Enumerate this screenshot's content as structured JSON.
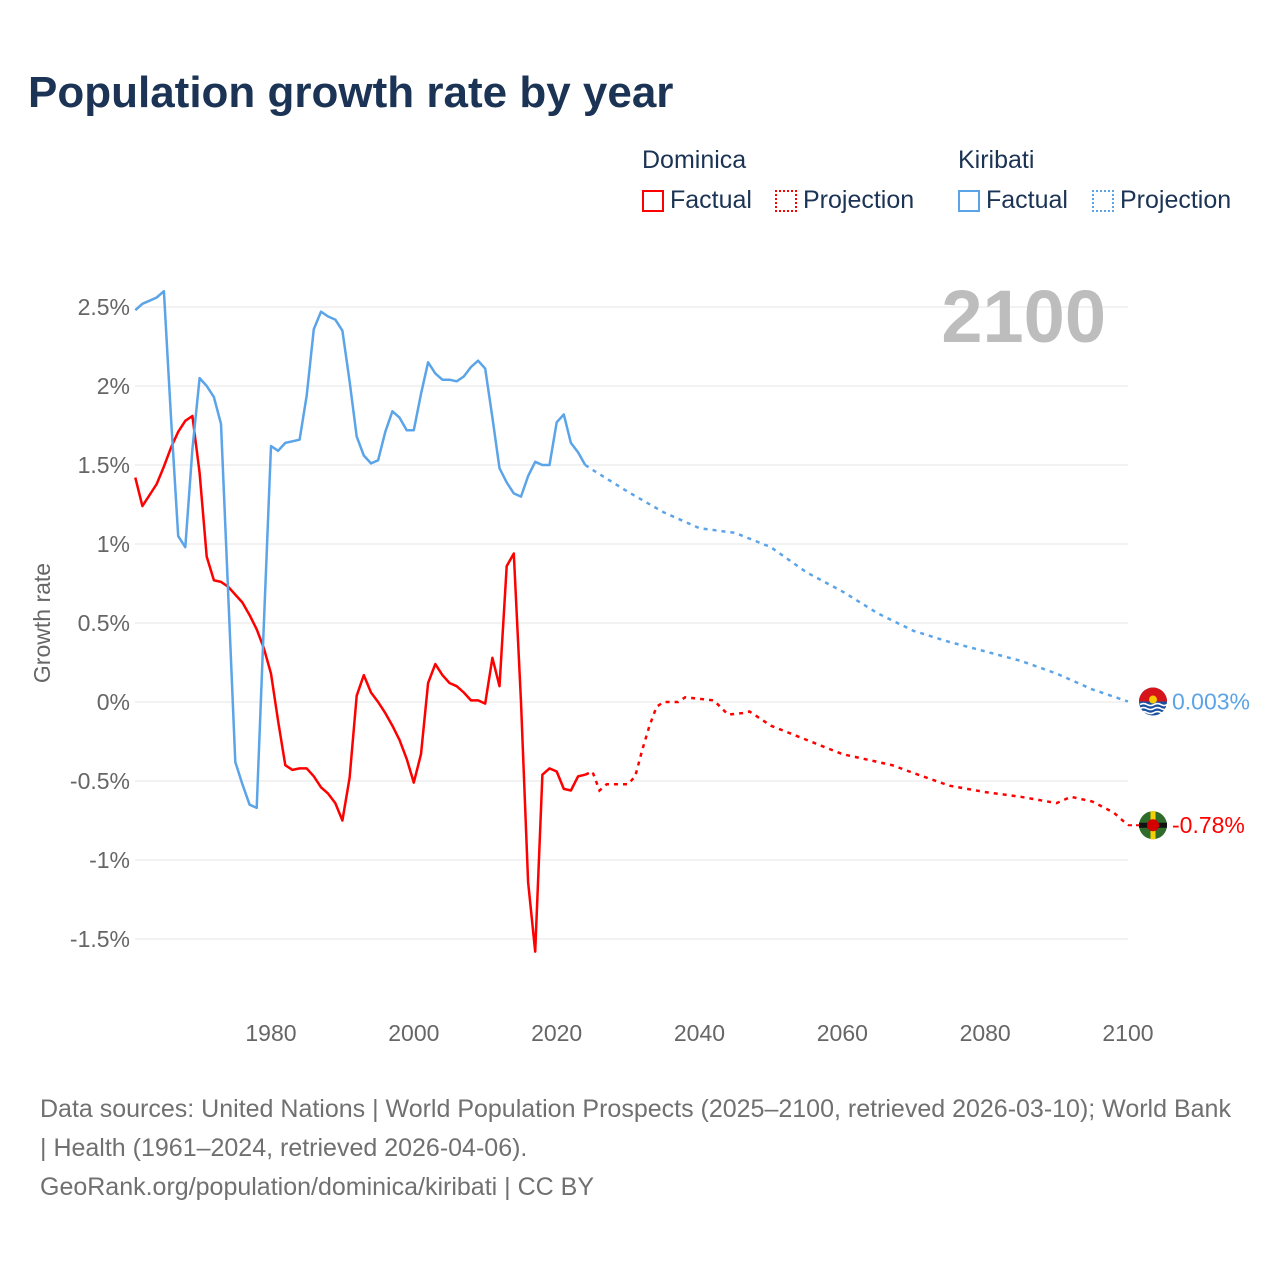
{
  "title": "Population growth rate by year",
  "legend": {
    "groups": [
      {
        "name": "Dominica",
        "color": "#ff0000",
        "factual": "Factual",
        "projection": "Projection"
      },
      {
        "name": "Kiribati",
        "color": "#5ba4e8",
        "factual": "Factual",
        "projection": "Projection"
      }
    ]
  },
  "year_overlay": "2100",
  "footer": {
    "sources": "Data sources: United Nations | World Population Prospects (2025–2100, retrieved 2026-03-10); World Bank | Health (1961–2024, retrieved 2026-04-06).",
    "credit": "GeoRank.org/population/dominica/kiribati | CC BY"
  },
  "chart_data": {
    "type": "line",
    "title": "Population growth rate by year",
    "xlabel": "",
    "ylabel": "Growth rate",
    "xlim": [
      1961,
      2100
    ],
    "ylim": [
      -1.8,
      2.65
    ],
    "xticks": [
      1980,
      2000,
      2020,
      2040,
      2060,
      2080,
      2100
    ],
    "xtick_labels": [
      "1980",
      "2000",
      "2020",
      "2040",
      "2060",
      "2080",
      "2100"
    ],
    "yticks": [
      2.5,
      2,
      1.5,
      1,
      0.5,
      0,
      -0.5,
      -1,
      -1.5
    ],
    "ytick_labels": [
      "2.5%",
      "2%",
      "1.5%",
      "1%",
      "0.5%",
      "0%",
      "-0.5%",
      "-1%",
      "-1.5%"
    ],
    "grid": true,
    "series": [
      {
        "name": "Dominica",
        "color": "#ff0000",
        "end_label": "-0.78%",
        "factual": {
          "x": [
            1961,
            1962,
            1963,
            1964,
            1965,
            1966,
            1967,
            1968,
            1969,
            1970,
            1971,
            1972,
            1973,
            1974,
            1975,
            1976,
            1977,
            1978,
            1979,
            1980,
            1981,
            1982,
            1983,
            1984,
            1985,
            1986,
            1987,
            1988,
            1989,
            1990,
            1991,
            1992,
            1993,
            1994,
            1995,
            1996,
            1997,
            1998,
            1999,
            2000,
            2001,
            2002,
            2003,
            2004,
            2005,
            2006,
            2007,
            2008,
            2009,
            2010,
            2011,
            2012,
            2013,
            2014,
            2015,
            2016,
            2017,
            2018,
            2019,
            2020,
            2021,
            2022,
            2023,
            2024
          ],
          "y": [
            1.42,
            1.24,
            1.31,
            1.38,
            1.49,
            1.61,
            1.71,
            1.78,
            1.81,
            1.45,
            0.92,
            0.77,
            0.76,
            0.73,
            0.68,
            0.63,
            0.55,
            0.46,
            0.34,
            0.18,
            -0.12,
            -0.4,
            -0.43,
            -0.42,
            -0.42,
            -0.47,
            -0.54,
            -0.58,
            -0.64,
            -0.75,
            -0.48,
            0.04,
            0.17,
            0.06,
            0.0,
            -0.07,
            -0.15,
            -0.24,
            -0.36,
            -0.51,
            -0.33,
            0.12,
            0.24,
            0.17,
            0.12,
            0.1,
            0.06,
            0.01,
            0.01,
            -0.01,
            0.28,
            0.1,
            0.86,
            0.94,
            0.0,
            -1.14,
            -1.58,
            -0.46,
            -0.42,
            -0.44,
            -0.55,
            -0.56,
            -0.47,
            -0.46
          ]
        },
        "projection": {
          "x": [
            2024,
            2025,
            2026,
            2027,
            2030,
            2031,
            2032,
            2033,
            2034,
            2035,
            2037,
            2038,
            2040,
            2042,
            2044,
            2046,
            2047,
            2050,
            2055,
            2060,
            2065,
            2067,
            2070,
            2075,
            2080,
            2085,
            2090,
            2092,
            2095,
            2098,
            2100
          ],
          "y": [
            -0.46,
            -0.44,
            -0.56,
            -0.52,
            -0.52,
            -0.47,
            -0.3,
            -0.15,
            -0.03,
            0.0,
            0.0,
            0.03,
            0.02,
            0.01,
            -0.08,
            -0.07,
            -0.06,
            -0.15,
            -0.24,
            -0.33,
            -0.38,
            -0.4,
            -0.45,
            -0.53,
            -0.57,
            -0.6,
            -0.64,
            -0.6,
            -0.63,
            -0.7,
            -0.78
          ]
        }
      },
      {
        "name": "Kiribati",
        "color": "#5ba4e8",
        "end_label": "0.003%",
        "factual": {
          "x": [
            1961,
            1962,
            1963,
            1964,
            1965,
            1966,
            1967,
            1968,
            1969,
            1970,
            1971,
            1972,
            1973,
            1974,
            1975,
            1976,
            1977,
            1978,
            1979,
            1980,
            1981,
            1982,
            1983,
            1984,
            1985,
            1986,
            1987,
            1988,
            1989,
            1990,
            1991,
            1992,
            1993,
            1994,
            1995,
            1996,
            1997,
            1998,
            1999,
            2000,
            2001,
            2002,
            2003,
            2004,
            2005,
            2006,
            2007,
            2008,
            2009,
            2010,
            2011,
            2012,
            2013,
            2014,
            2015,
            2016,
            2017,
            2018,
            2019,
            2020,
            2021,
            2022,
            2023,
            2024
          ],
          "y": [
            2.48,
            2.52,
            2.54,
            2.56,
            2.6,
            1.8,
            1.05,
            0.98,
            1.6,
            2.05,
            2.0,
            1.93,
            1.76,
            0.7,
            -0.38,
            -0.52,
            -0.65,
            -0.67,
            0.5,
            1.62,
            1.59,
            1.64,
            1.65,
            1.66,
            1.94,
            2.36,
            2.47,
            2.44,
            2.42,
            2.35,
            2.03,
            1.68,
            1.56,
            1.51,
            1.53,
            1.71,
            1.84,
            1.8,
            1.72,
            1.72,
            1.95,
            2.15,
            2.08,
            2.04,
            2.04,
            2.03,
            2.06,
            2.12,
            2.16,
            2.11,
            1.8,
            1.48,
            1.39,
            1.32,
            1.3,
            1.43,
            1.52,
            1.5,
            1.5,
            1.77,
            1.82,
            1.64,
            1.58,
            1.5
          ]
        },
        "projection": {
          "x": [
            2024,
            2025,
            2030,
            2035,
            2040,
            2045,
            2050,
            2055,
            2060,
            2065,
            2070,
            2075,
            2080,
            2085,
            2090,
            2095,
            2100
          ],
          "y": [
            1.5,
            1.47,
            1.33,
            1.2,
            1.1,
            1.07,
            0.98,
            0.82,
            0.7,
            0.56,
            0.45,
            0.38,
            0.32,
            0.26,
            0.18,
            0.08,
            0.003
          ]
        }
      }
    ]
  }
}
